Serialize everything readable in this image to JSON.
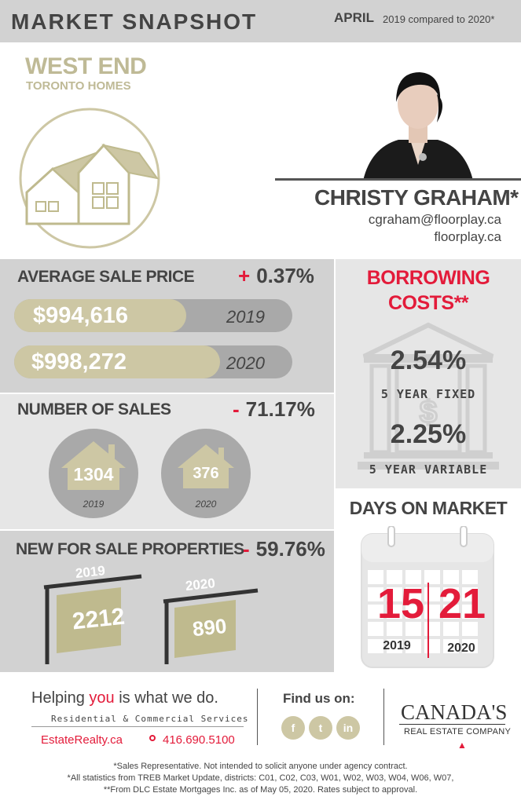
{
  "header": {
    "title": "MARKET SNAPSHOT",
    "month": "APRIL",
    "comparison": "2019 compared to 2020*"
  },
  "area": {
    "name": "WEST END",
    "subtitle": "TORONTO HOMES",
    "logo_icon": "house-outline-icon"
  },
  "agent": {
    "name": "CHRISTY GRAHAM*",
    "email": "cgraham@floorplay.ca",
    "website": "floorplay.ca"
  },
  "average_sale_price": {
    "title": "AVERAGE SALE PRICE",
    "change_sign": "+",
    "change_value": "0.37%",
    "bars": [
      {
        "value": "$994,616",
        "year": "2019",
        "fill_fraction": 0.62
      },
      {
        "value": "$998,272",
        "year": "2020",
        "fill_fraction": 0.74
      }
    ]
  },
  "number_of_sales": {
    "title": "NUMBER OF SALES",
    "change_sign": "-",
    "change_value": "71.17%",
    "items": [
      {
        "value": "1304",
        "year": "2019"
      },
      {
        "value": "376",
        "year": "2020"
      }
    ]
  },
  "new_for_sale": {
    "title": "NEW FOR SALE PROPERTIES",
    "change_sign": "-",
    "change_value": "59.76%",
    "items": [
      {
        "value": "2212",
        "year": "2019"
      },
      {
        "value": "890",
        "year": "2020"
      }
    ]
  },
  "borrowing": {
    "title_line1": "BORROWING",
    "title_line2": "COSTS**",
    "fixed_rate": "2.54%",
    "fixed_label": "5 YEAR FIXED",
    "variable_rate": "2.25%",
    "variable_label": "5 YEAR VARIABLE"
  },
  "days_on_market": {
    "title": "DAYS ON MARKET",
    "items": [
      {
        "value": "15",
        "year": "2019"
      },
      {
        "value": "21",
        "year": "2020"
      }
    ]
  },
  "footer": {
    "tagline_pre": "Helping ",
    "tagline_hl": "you",
    "tagline_post": " is what we do.",
    "services": "Residential & Commercial Services",
    "website": "EstateRealty.ca",
    "phone": "416.690.5100",
    "find_us": "Find us on:",
    "social": [
      {
        "label": "f",
        "icon": "facebook-icon"
      },
      {
        "label": "t",
        "icon": "twitter-icon"
      },
      {
        "label": "in",
        "icon": "linkedin-icon"
      }
    ],
    "brand_top": "CANADA'S",
    "brand_bottom": "REAL ESTATE COMPANY",
    "notes": [
      "*Sales Representative. Not intended to solicit anyone under agency contract.",
      "*All statistics from TREB Market Update, districts: C01, C02, C03, W01, W02, W03, W04, W06, W07,",
      "**From DLC Estate Mortgages Inc. as of May 05, 2020. Rates subject to approval."
    ]
  },
  "colors": {
    "accent_red": "#e31b3a",
    "gold": "#cdc7a4",
    "dark_text": "#444444",
    "panel_gray": "#d2d2d2"
  }
}
